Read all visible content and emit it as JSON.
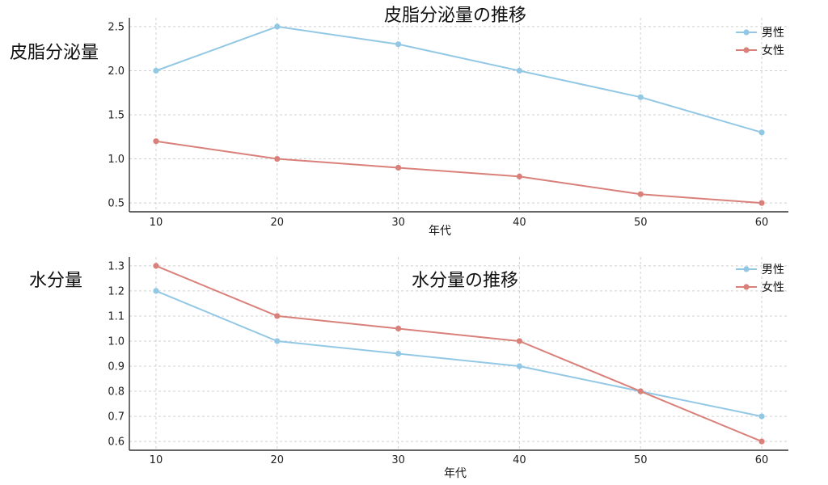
{
  "chart_data": [
    {
      "type": "line",
      "title": "皮脂分泌量の推移",
      "ylabel": "皮脂分泌量",
      "xlabel": "年代",
      "x": [
        10,
        20,
        30,
        40,
        50,
        60
      ],
      "xticks": [
        "10",
        "20",
        "30",
        "40",
        "50",
        "60"
      ],
      "yticks": [
        "0.5",
        "1.0",
        "1.5",
        "2.0",
        "2.5"
      ],
      "ytick_values": [
        0.5,
        1.0,
        1.5,
        2.0,
        2.5
      ],
      "ylim": [
        0.4,
        2.6
      ],
      "xlim": [
        7.8,
        62.2
      ],
      "grid": true,
      "legend_position": "top-right",
      "series": [
        {
          "name": "男性",
          "color": "#93C8E5",
          "values": [
            2.0,
            2.5,
            2.3,
            2.0,
            1.7,
            1.3
          ]
        },
        {
          "name": "女性",
          "color": "#D9807A",
          "values": [
            1.2,
            1.0,
            0.9,
            0.8,
            0.6,
            0.5
          ]
        }
      ]
    },
    {
      "type": "line",
      "title": "水分量の推移",
      "ylabel": "水分量",
      "xlabel": "年代",
      "x": [
        10,
        20,
        30,
        40,
        50,
        60
      ],
      "xticks": [
        "10",
        "20",
        "30",
        "40",
        "50",
        "60"
      ],
      "yticks": [
        "0.6",
        "0.7",
        "0.8",
        "0.9",
        "1.0",
        "1.1",
        "1.2",
        "1.3"
      ],
      "ytick_values": [
        0.6,
        0.7,
        0.8,
        0.9,
        1.0,
        1.1,
        1.2,
        1.3
      ],
      "ylim": [
        0.565,
        1.335
      ],
      "xlim": [
        7.8,
        62.2
      ],
      "grid": true,
      "legend_position": "top-right",
      "series": [
        {
          "name": "男性",
          "color": "#93C8E5",
          "values": [
            1.2,
            1.0,
            0.95,
            0.9,
            0.8,
            0.7
          ]
        },
        {
          "name": "女性",
          "color": "#D9807A",
          "values": [
            1.3,
            1.1,
            1.05,
            1.0,
            0.8,
            0.6
          ]
        }
      ]
    }
  ]
}
